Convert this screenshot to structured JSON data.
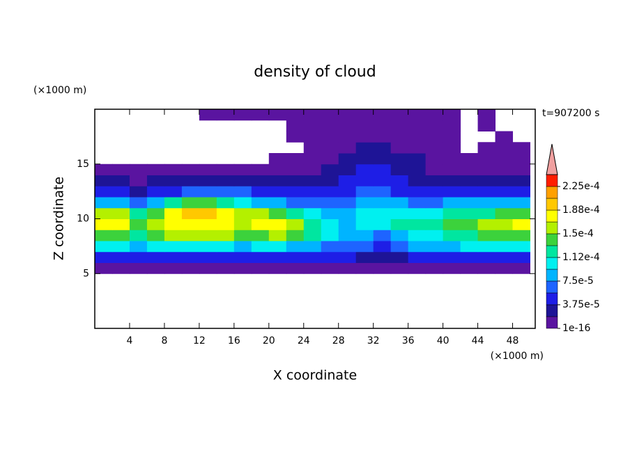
{
  "chart_data": {
    "type": "contour",
    "title": "density of cloud",
    "x_label": "X coordinate",
    "y_label": "Z coordinate",
    "x_unit": "(×1000 m)",
    "y_unit": "(×1000 m)",
    "annotation": "t=907200 s",
    "xlim": [
      0,
      50.6
    ],
    "ylim": [
      0,
      20
    ],
    "xticks": [
      4,
      8,
      12,
      16,
      20,
      24,
      28,
      32,
      36,
      40,
      44,
      48
    ],
    "yticks": [
      5,
      10,
      15
    ],
    "cell_width": 2,
    "cell_height": 1,
    "x": [
      1,
      3,
      5,
      7,
      9,
      11,
      13,
      15,
      17,
      19,
      21,
      23,
      25,
      27,
      29,
      31,
      33,
      35,
      37,
      39,
      41,
      43,
      45,
      47,
      49
    ],
    "z": [
      0.5,
      1.5,
      2.5,
      3.5,
      4.5,
      5.5,
      6.5,
      7.5,
      8.5,
      9.5,
      10.5,
      11.5,
      12.5,
      13.5,
      14.5,
      15.5,
      16.5,
      17.5,
      18.5,
      19.5
    ],
    "levels": [
      1e-16,
      1.875e-05,
      3.75e-05,
      5.625e-05,
      7.5e-05,
      9.375e-05,
      0.0001125,
      0.00013125,
      0.00015,
      0.00016875,
      0.0001875,
      0.00020625,
      0.000225,
      0.00024375
    ],
    "colors": [
      "#5a14a0",
      "#1e1496",
      "#1e1ee6",
      "#1e64ff",
      "#00b4ff",
      "#00f0f0",
      "#00e6a0",
      "#3cd23c",
      "#b4f000",
      "#ffff00",
      "#ffc800",
      "#ffa000",
      "#ff1e00"
    ],
    "over_color": "#f0a0a0",
    "colorbar_ticks": [
      1e-16,
      {
        "value": 3.75e-05,
        "label": "3.75e-5"
      },
      {
        "value": 7.5e-05,
        "label": "7.5e-5"
      },
      {
        "value": 0.0001125,
        "label": "1.12e-4"
      },
      {
        "value": 0.00015,
        "label": "1.5e-4"
      },
      {
        "value": 0.0001875,
        "label": "1.88e-4"
      },
      {
        "value": 0.000225,
        "label": "2.25e-4"
      }
    ],
    "values": [
      [
        null,
        null,
        null,
        null,
        null,
        null,
        null,
        null,
        null,
        null,
        null,
        null,
        null,
        null,
        null,
        null,
        null,
        null,
        null,
        null,
        null,
        null,
        null,
        null,
        null
      ],
      [
        null,
        null,
        null,
        null,
        null,
        null,
        null,
        null,
        null,
        null,
        null,
        null,
        null,
        null,
        null,
        null,
        null,
        null,
        null,
        null,
        null,
        null,
        null,
        null,
        null
      ],
      [
        null,
        null,
        null,
        null,
        null,
        null,
        null,
        null,
        null,
        null,
        null,
        null,
        null,
        null,
        null,
        null,
        null,
        null,
        null,
        null,
        null,
        null,
        null,
        null,
        null
      ],
      [
        null,
        null,
        null,
        null,
        null,
        null,
        null,
        null,
        null,
        null,
        null,
        null,
        null,
        null,
        null,
        null,
        null,
        null,
        null,
        null,
        null,
        null,
        null,
        null,
        null
      ],
      [
        null,
        null,
        null,
        null,
        null,
        null,
        null,
        null,
        null,
        null,
        null,
        null,
        null,
        null,
        null,
        null,
        null,
        null,
        null,
        null,
        null,
        null,
        null,
        null,
        null
      ],
      [
        9e-06,
        9e-06,
        9e-06,
        9e-06,
        9e-06,
        9e-06,
        9e-06,
        9e-06,
        9e-06,
        9e-06,
        9e-06,
        9e-06,
        9e-06,
        9e-06,
        9e-06,
        9e-06,
        9e-06,
        9e-06,
        9e-06,
        9e-06,
        9e-06,
        9e-06,
        9e-06,
        9e-06,
        9e-06
      ],
      [
        4.7e-05,
        4.7e-05,
        4.7e-05,
        4.7e-05,
        4.7e-05,
        4.7e-05,
        4.7e-05,
        4.7e-05,
        4.7e-05,
        4.7e-05,
        4.7e-05,
        4.7e-05,
        4.7e-05,
        4.7e-05,
        4.7e-05,
        2.8e-05,
        2.8e-05,
        2.8e-05,
        4.7e-05,
        4.7e-05,
        4.7e-05,
        4.7e-05,
        4.7e-05,
        4.7e-05,
        4.7e-05
      ],
      [
        0.000103,
        0.000103,
        8.4e-05,
        0.000103,
        0.000103,
        0.000103,
        0.000103,
        0.000103,
        8.4e-05,
        0.000103,
        0.000103,
        8.4e-05,
        8.4e-05,
        6.6e-05,
        6.6e-05,
        6.6e-05,
        4.7e-05,
        6.6e-05,
        8.4e-05,
        8.4e-05,
        8.4e-05,
        0.000103,
        0.000103,
        0.000103,
        0.000103
      ],
      [
        0.000141,
        0.000141,
        0.000122,
        0.000141,
        0.00016,
        0.00016,
        0.00016,
        0.00016,
        0.000141,
        0.000141,
        0.00016,
        0.000141,
        0.000122,
        0.000103,
        8.4e-05,
        8.4e-05,
        6.6e-05,
        8.4e-05,
        0.000103,
        0.000103,
        0.000122,
        0.000122,
        0.000141,
        0.000141,
        0.000141
      ],
      [
        0.000178,
        0.000178,
        0.000141,
        0.00016,
        0.000178,
        0.000178,
        0.000178,
        0.000178,
        0.00016,
        0.000178,
        0.000178,
        0.00016,
        0.000122,
        0.000103,
        8.4e-05,
        0.000103,
        0.000103,
        0.000122,
        0.000122,
        0.000122,
        0.000141,
        0.000141,
        0.00016,
        0.00016,
        0.000178
      ],
      [
        0.00016,
        0.00016,
        0.000122,
        0.000141,
        0.000178,
        0.000197,
        0.000197,
        0.000178,
        0.00016,
        0.00016,
        0.000141,
        0.000122,
        0.000103,
        8.4e-05,
        8.4e-05,
        0.000103,
        0.000103,
        0.000103,
        0.000103,
        0.000103,
        0.000122,
        0.000122,
        0.000122,
        0.000141,
        0.000141
      ],
      [
        8.4e-05,
        8.4e-05,
        6.6e-05,
        8.4e-05,
        0.000122,
        0.000141,
        0.000141,
        0.000122,
        0.000103,
        8.4e-05,
        8.4e-05,
        6.6e-05,
        6.6e-05,
        6.6e-05,
        6.6e-05,
        8.4e-05,
        8.4e-05,
        8.4e-05,
        6.6e-05,
        6.6e-05,
        8.4e-05,
        8.4e-05,
        8.4e-05,
        8.4e-05,
        8.4e-05
      ],
      [
        4.7e-05,
        4.7e-05,
        2.8e-05,
        4.7e-05,
        4.7e-05,
        6.6e-05,
        6.6e-05,
        6.6e-05,
        6.6e-05,
        4.7e-05,
        4.7e-05,
        4.7e-05,
        4.7e-05,
        4.7e-05,
        4.7e-05,
        6.6e-05,
        6.6e-05,
        4.7e-05,
        4.7e-05,
        4.7e-05,
        4.7e-05,
        4.7e-05,
        4.7e-05,
        4.7e-05,
        4.7e-05
      ],
      [
        2.8e-05,
        2.8e-05,
        9e-06,
        2.8e-05,
        2.8e-05,
        2.8e-05,
        2.8e-05,
        2.8e-05,
        2.8e-05,
        2.8e-05,
        2.8e-05,
        2.8e-05,
        2.8e-05,
        2.8e-05,
        4.7e-05,
        4.7e-05,
        4.7e-05,
        4.7e-05,
        2.8e-05,
        2.8e-05,
        2.8e-05,
        2.8e-05,
        2.8e-05,
        2.8e-05,
        2.8e-05
      ],
      [
        9e-06,
        9e-06,
        9e-06,
        9e-06,
        9e-06,
        9e-06,
        9e-06,
        9e-06,
        9e-06,
        9e-06,
        9e-06,
        9e-06,
        9e-06,
        2.8e-05,
        2.8e-05,
        4.7e-05,
        4.7e-05,
        2.8e-05,
        2.8e-05,
        9e-06,
        9e-06,
        9e-06,
        9e-06,
        9e-06,
        9e-06
      ],
      [
        null,
        null,
        null,
        null,
        null,
        null,
        null,
        null,
        null,
        null,
        9e-06,
        9e-06,
        9e-06,
        9e-06,
        2.8e-05,
        2.8e-05,
        2.8e-05,
        2.8e-05,
        2.8e-05,
        9e-06,
        9e-06,
        9e-06,
        9e-06,
        9e-06,
        9e-06
      ],
      [
        null,
        null,
        null,
        null,
        null,
        null,
        null,
        null,
        null,
        null,
        null,
        null,
        9e-06,
        9e-06,
        9e-06,
        2.8e-05,
        2.8e-05,
        9e-06,
        9e-06,
        9e-06,
        9e-06,
        null,
        9e-06,
        9e-06,
        9e-06
      ],
      [
        null,
        null,
        null,
        null,
        null,
        null,
        null,
        null,
        null,
        null,
        null,
        9e-06,
        9e-06,
        9e-06,
        9e-06,
        9e-06,
        9e-06,
        9e-06,
        9e-06,
        9e-06,
        9e-06,
        null,
        null,
        9e-06,
        null
      ],
      [
        null,
        null,
        null,
        null,
        null,
        null,
        null,
        null,
        null,
        null,
        null,
        9e-06,
        9e-06,
        9e-06,
        9e-06,
        9e-06,
        9e-06,
        9e-06,
        9e-06,
        9e-06,
        9e-06,
        null,
        9e-06,
        null,
        null
      ],
      [
        null,
        null,
        null,
        null,
        null,
        null,
        9e-06,
        9e-06,
        9e-06,
        9e-06,
        9e-06,
        9e-06,
        9e-06,
        9e-06,
        9e-06,
        9e-06,
        9e-06,
        9e-06,
        9e-06,
        9e-06,
        9e-06,
        null,
        9e-06,
        null,
        null
      ]
    ]
  }
}
